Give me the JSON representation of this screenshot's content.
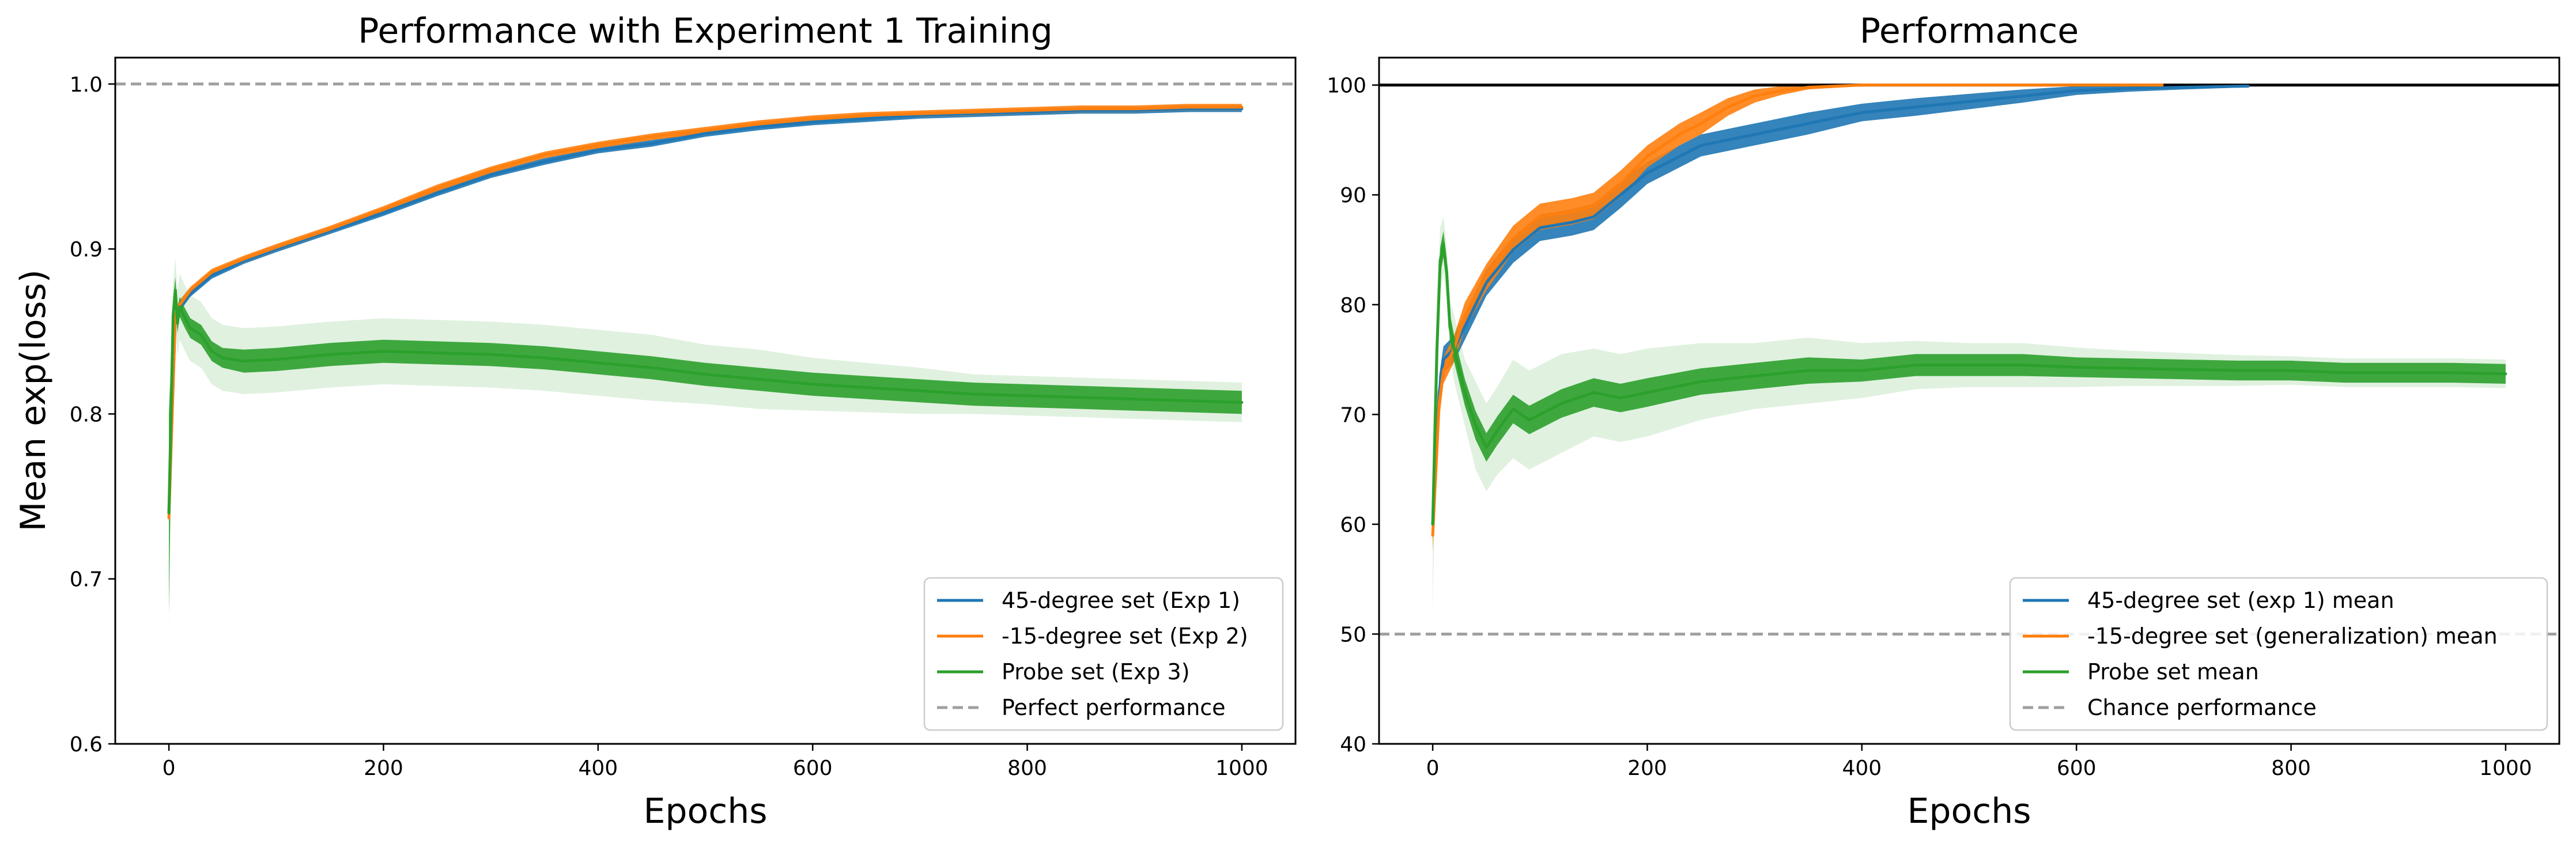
{
  "chart_data": [
    {
      "type": "line",
      "title": "Performance with Experiment 1 Training",
      "xlabel": "Epochs",
      "ylabel": "Mean exp(loss)",
      "xlim": [
        -50,
        1050
      ],
      "ylim": [
        0.6,
        1.016
      ],
      "xticks": [
        0,
        200,
        400,
        600,
        800,
        1000
      ],
      "yticks": [
        0.6,
        0.7,
        0.8,
        0.9,
        1.0
      ],
      "ytick_labels": [
        "0.6",
        "0.7",
        "0.8",
        "0.9",
        "1.0"
      ],
      "legend_position": "lower-right",
      "series": [
        {
          "name": "45-degree set (Exp 1)",
          "color": "#1f77b4",
          "style": "solid",
          "x": [
            0,
            3,
            6,
            10,
            20,
            40,
            70,
            100,
            150,
            200,
            250,
            300,
            350,
            400,
            450,
            500,
            550,
            600,
            650,
            700,
            750,
            800,
            850,
            900,
            950,
            1000
          ],
          "y": [
            0.74,
            0.8,
            0.86,
            0.865,
            0.873,
            0.884,
            0.893,
            0.9,
            0.911,
            0.922,
            0.934,
            0.945,
            0.953,
            0.96,
            0.964,
            0.97,
            0.974,
            0.977,
            0.979,
            0.981,
            0.982,
            0.983,
            0.984,
            0.984,
            0.985,
            0.985
          ],
          "band": [
            0.002,
            0.003,
            0.004,
            0.003,
            0.002,
            0.002,
            0.002,
            0.002,
            0.002,
            0.002,
            0.002,
            0.002,
            0.002,
            0.002,
            0.002,
            0.002,
            0.002,
            0.002,
            0.002,
            0.002,
            0.002,
            0.002,
            0.002,
            0.002,
            0.002,
            0.002
          ]
        },
        {
          "name": "-15-degree set (Exp 2)",
          "color": "#ff7f0e",
          "style": "solid",
          "x": [
            0,
            3,
            6,
            10,
            20,
            40,
            70,
            100,
            150,
            200,
            250,
            300,
            350,
            400,
            450,
            500,
            550,
            600,
            650,
            700,
            750,
            800,
            850,
            900,
            950,
            1000
          ],
          "y": [
            0.737,
            0.8,
            0.86,
            0.866,
            0.875,
            0.886,
            0.894,
            0.901,
            0.912,
            0.924,
            0.937,
            0.948,
            0.957,
            0.963,
            0.968,
            0.972,
            0.976,
            0.979,
            0.981,
            0.982,
            0.983,
            0.984,
            0.985,
            0.985,
            0.986,
            0.986
          ],
          "band": [
            0.002,
            0.003,
            0.004,
            0.003,
            0.002,
            0.002,
            0.002,
            0.002,
            0.002,
            0.002,
            0.002,
            0.002,
            0.002,
            0.002,
            0.002,
            0.002,
            0.002,
            0.002,
            0.002,
            0.002,
            0.002,
            0.002,
            0.002,
            0.002,
            0.002,
            0.002
          ]
        },
        {
          "name": "Probe set (Exp 3)",
          "color": "#2ca02c",
          "style": "solid",
          "x": [
            0,
            2,
            4,
            6,
            8,
            10,
            15,
            20,
            30,
            40,
            50,
            70,
            100,
            150,
            200,
            250,
            300,
            350,
            400,
            450,
            500,
            550,
            600,
            650,
            700,
            750,
            800,
            850,
            900,
            950,
            1000
          ],
          "y": [
            0.74,
            0.8,
            0.86,
            0.875,
            0.855,
            0.865,
            0.858,
            0.852,
            0.848,
            0.838,
            0.834,
            0.832,
            0.833,
            0.836,
            0.838,
            0.837,
            0.836,
            0.834,
            0.831,
            0.828,
            0.824,
            0.821,
            0.818,
            0.816,
            0.814,
            0.812,
            0.811,
            0.81,
            0.809,
            0.808,
            0.807
          ],
          "band": [
            0.06,
            0.03,
            0.01,
            0.008,
            0.006,
            0.006,
            0.006,
            0.006,
            0.006,
            0.006,
            0.006,
            0.007,
            0.007,
            0.007,
            0.007,
            0.007,
            0.007,
            0.007,
            0.007,
            0.007,
            0.007,
            0.007,
            0.007,
            0.007,
            0.007,
            0.007,
            0.007,
            0.007,
            0.007,
            0.007,
            0.007
          ],
          "outer_band": [
            0.07,
            0.04,
            0.02,
            0.02,
            0.02,
            0.02,
            0.02,
            0.02,
            0.02,
            0.02,
            0.02,
            0.02,
            0.02,
            0.02,
            0.02,
            0.02,
            0.02,
            0.02,
            0.02,
            0.02,
            0.018,
            0.018,
            0.016,
            0.015,
            0.014,
            0.012,
            0.012,
            0.012,
            0.012,
            0.012,
            0.012
          ]
        }
      ],
      "reference_line": {
        "name": "Perfect performance",
        "y": 1.0,
        "color": "#a0a0a0",
        "style": "dashed"
      }
    },
    {
      "type": "line",
      "title": "Performance",
      "xlabel": "Epochs",
      "ylabel": "",
      "xlim": [
        -50,
        1050
      ],
      "ylim": [
        40,
        102.5
      ],
      "xticks": [
        0,
        200,
        400,
        600,
        800,
        1000
      ],
      "yticks": [
        40,
        50,
        60,
        70,
        80,
        90,
        100
      ],
      "ytick_labels": [
        "40",
        "50",
        "60",
        "70",
        "80",
        "90",
        "100"
      ],
      "legend_position": "lower-right",
      "series": [
        {
          "name": "45-degree set (exp 1) mean",
          "color": "#1f77b4",
          "style": "solid",
          "x": [
            0,
            3,
            6,
            10,
            20,
            30,
            50,
            75,
            100,
            130,
            150,
            175,
            200,
            250,
            300,
            350,
            400,
            450,
            500,
            550,
            600,
            650,
            700,
            760
          ],
          "y": [
            60,
            66,
            72,
            75,
            76,
            78,
            82,
            85,
            87,
            87.5,
            88,
            90,
            92,
            94.5,
            95.5,
            96.5,
            97.5,
            98,
            98.5,
            99,
            99.5,
            99.7,
            99.8,
            99.9
          ],
          "band": [
            1.5,
            1.5,
            1.5,
            1.2,
            1.2,
            1.2,
            1.2,
            1.2,
            1.2,
            1.2,
            1.2,
            1.2,
            1.0,
            1.0,
            1.0,
            1.0,
            0.8,
            0.8,
            0.7,
            0.6,
            0.4,
            0.3,
            0.2,
            0.1
          ]
        },
        {
          "name": "-15-degree set (generalization) mean",
          "color": "#ff7f0e",
          "style": "solid",
          "x": [
            0,
            3,
            6,
            10,
            20,
            30,
            50,
            75,
            100,
            130,
            150,
            175,
            200,
            230,
            250,
            275,
            300,
            325,
            350,
            400,
            450,
            500,
            550,
            600,
            680
          ],
          "y": [
            59,
            65,
            71,
            74,
            76,
            79,
            82.5,
            86,
            88,
            88.5,
            89,
            91,
            93.5,
            95.5,
            96.5,
            98,
            99,
            99.5,
            99.8,
            100,
            100,
            100,
            100,
            100,
            100
          ],
          "band": [
            1.5,
            1.5,
            1.5,
            1.2,
            1.2,
            1.2,
            1.2,
            1.2,
            1.2,
            1.2,
            1.2,
            1.2,
            1.0,
            1.0,
            1.0,
            0.8,
            0.6,
            0.4,
            0.2,
            0.1,
            0.05,
            0.05,
            0.05,
            0.05,
            0.05
          ]
        },
        {
          "name": "Probe set mean",
          "color": "#2ca02c",
          "style": "solid",
          "x": [
            0,
            2,
            4,
            7,
            10,
            13,
            16,
            20,
            25,
            30,
            40,
            50,
            60,
            75,
            90,
            100,
            120,
            150,
            175,
            200,
            250,
            300,
            350,
            400,
            450,
            500,
            550,
            600,
            650,
            700,
            750,
            800,
            850,
            900,
            950,
            1000
          ],
          "y": [
            60,
            68,
            76,
            84,
            85.5,
            83,
            78,
            76,
            74,
            72,
            69,
            67,
            68.5,
            70.5,
            69.5,
            70,
            71,
            72,
            71.5,
            72,
            73,
            73.5,
            74,
            74,
            74.5,
            74.5,
            74.5,
            74.3,
            74.2,
            74.1,
            74,
            74,
            73.8,
            73.8,
            73.8,
            73.7
          ],
          "band": [
            1.2,
            1.2,
            1.2,
            1.2,
            1.2,
            1.2,
            1.2,
            1.2,
            1.2,
            1.2,
            1.3,
            1.3,
            1.3,
            1.3,
            1.3,
            1.3,
            1.3,
            1.3,
            1.3,
            1.3,
            1.2,
            1.2,
            1.2,
            1.0,
            1.0,
            1.0,
            1.0,
            0.9,
            0.9,
            0.9,
            0.9,
            0.9,
            0.9,
            0.9,
            0.9,
            0.9
          ],
          "outer_band": [
            8,
            6,
            5,
            3,
            2.5,
            2.5,
            2.5,
            3,
            3,
            3,
            4,
            4,
            4,
            4.5,
            4.5,
            4.5,
            4.5,
            4,
            4,
            4,
            3.5,
            3,
            3,
            2.5,
            2.2,
            2,
            2,
            1.8,
            1.6,
            1.5,
            1.4,
            1.3,
            1.3,
            1.3,
            1.3,
            1.3
          ]
        }
      ],
      "extra_lines": [
        {
          "y": 100,
          "color": "#000000",
          "style": "solid"
        }
      ],
      "reference_line": {
        "name": "Chance performance",
        "y": 50,
        "color": "#a0a0a0",
        "style": "dashed"
      }
    }
  ]
}
